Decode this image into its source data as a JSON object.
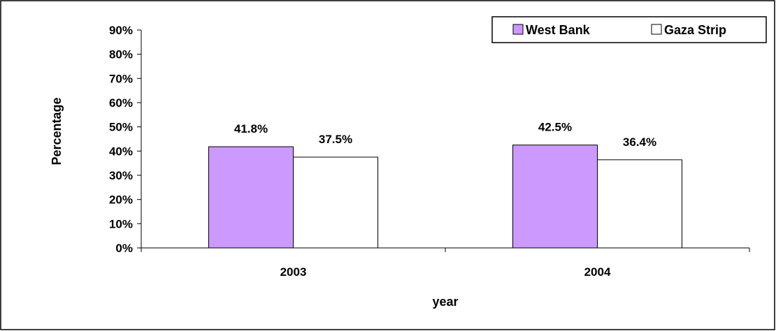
{
  "chart_data": {
    "type": "bar",
    "categories": [
      "2003",
      "2004"
    ],
    "series": [
      {
        "name": "West Bank",
        "values": [
          41.8,
          42.5
        ],
        "labels": [
          "41.8%",
          "42.5%"
        ],
        "color": "#cc99ff"
      },
      {
        "name": "Gaza Strip",
        "values": [
          37.5,
          36.4
        ],
        "labels": [
          "37.5%",
          "36.4%"
        ],
        "color": "#ffffff"
      }
    ],
    "xlabel": "year",
    "ylabel": "Percentage",
    "ylim": [
      0,
      90
    ],
    "yticks": [
      "0%",
      "10%",
      "20%",
      "30%",
      "40%",
      "50%",
      "60%",
      "70%",
      "80%",
      "90%"
    ],
    "grid": false,
    "legend": "top-right"
  }
}
